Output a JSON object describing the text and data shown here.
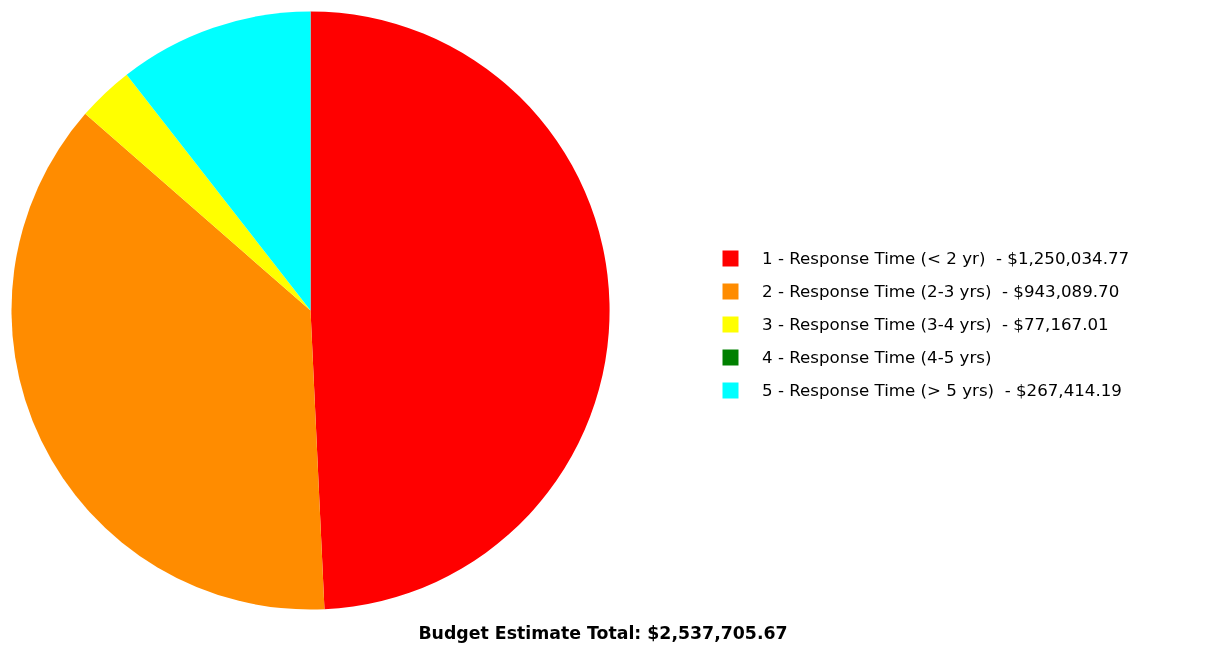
{
  "chart_data": {
    "type": "pie",
    "title": "Budget Estimate Total: $2,537,705.67",
    "categories": [
      "1 - Response Time (< 2 yr)",
      "2 - Response Time (2-3 yrs)",
      "3 - Response Time (3-4 yrs)",
      "4 - Response Time (4-5 yrs)",
      "5 - Response Time (> 5 yrs)"
    ],
    "value_labels": [
      "$1,250,034.77",
      "$943,089.70",
      "$77,167.01",
      null,
      "$267,414.19"
    ],
    "values": [
      1250034.77,
      943089.7,
      77167.01,
      0,
      267414.19
    ],
    "colors": [
      "#ff0000",
      "#ff8c00",
      "#ffff00",
      "#008000",
      "#00ffff"
    ],
    "legend": "right"
  }
}
